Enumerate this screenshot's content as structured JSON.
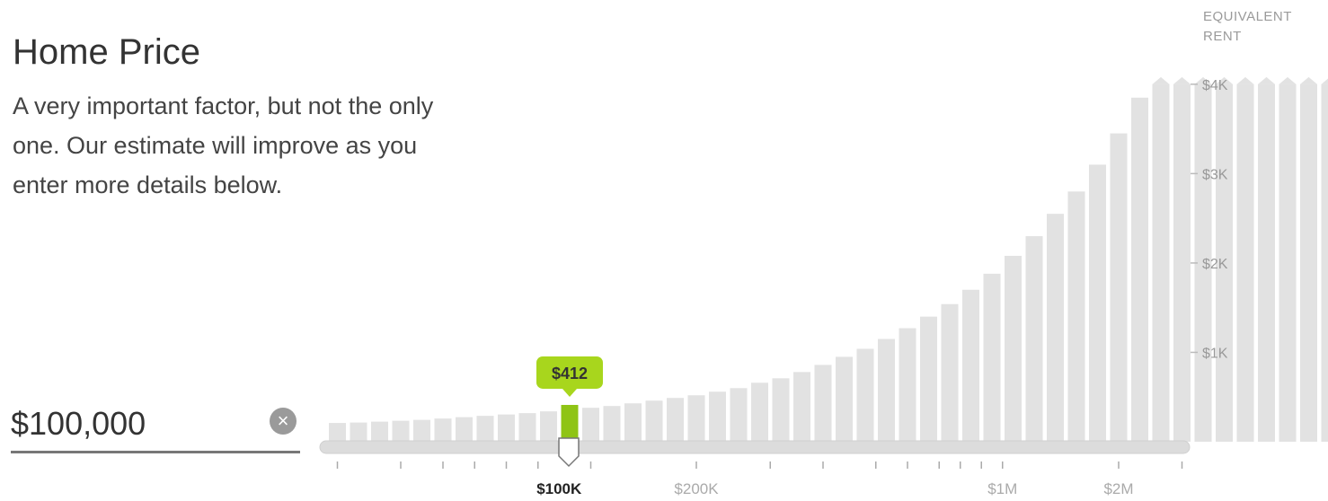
{
  "header": {
    "title": "Home Price",
    "description": "A very important factor, but not the only one. Our estimate will improve as you enter more details below."
  },
  "price_input": {
    "value": "$100,000",
    "clear_icon": "close-circle-icon"
  },
  "colors": {
    "bar": "#e2e2e2",
    "selected_bar": "#8fc415",
    "bubble": "#a8d61d",
    "track": "#dcdcdc"
  },
  "chart_data": {
    "type": "bar",
    "ylabel": "EQUIVALENT RENT",
    "yticks": [
      {
        "value": 4000,
        "label": "$4K"
      },
      {
        "value": 3000,
        "label": "$3K"
      },
      {
        "value": 2000,
        "label": "$2K"
      },
      {
        "value": 1000,
        "label": "$1K"
      }
    ],
    "ylim": [
      0,
      4400
    ],
    "xticks": [
      {
        "index": 10.5,
        "label": "$100K",
        "selected": true
      },
      {
        "index": 17,
        "label": "$200K"
      },
      {
        "index": 31.5,
        "label": "$1M"
      },
      {
        "index": 37,
        "label": "$2M"
      }
    ],
    "values": [
      210,
      215,
      225,
      235,
      245,
      260,
      275,
      290,
      305,
      320,
      340,
      412,
      380,
      400,
      430,
      460,
      490,
      520,
      560,
      600,
      660,
      710,
      780,
      860,
      950,
      1040,
      1150,
      1270,
      1400,
      1540,
      1700,
      1880,
      2080,
      2300,
      2550,
      2800,
      3100,
      3450,
      3850,
      4000,
      4000,
      4000,
      4000,
      4000,
      4000,
      4000,
      4000,
      4000,
      4000,
      4000
    ],
    "capped": true,
    "selected_index": 11,
    "selected_label": "$412"
  }
}
